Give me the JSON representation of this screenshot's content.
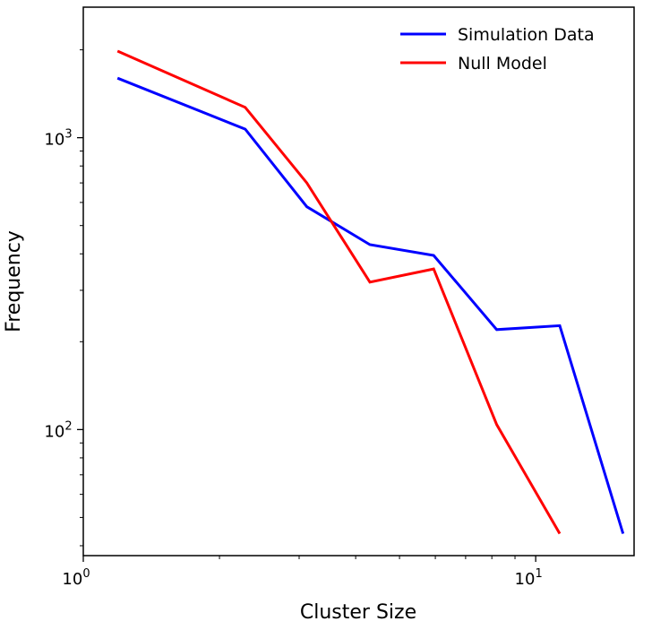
{
  "chart_data": {
    "type": "line",
    "xlabel": "Cluster Size",
    "ylabel": "Frequency",
    "xscale": "log",
    "yscale": "log",
    "xlim": [
      1.0,
      16.5
    ],
    "ylim": [
      37,
      2800
    ],
    "x_major_ticks": [
      {
        "value": 1,
        "base": "10",
        "exp": "0"
      },
      {
        "value": 10,
        "base": "10",
        "exp": "1"
      }
    ],
    "y_major_ticks": [
      {
        "value": 100,
        "base": "10",
        "exp": "2"
      },
      {
        "value": 1000,
        "base": "10",
        "exp": "3"
      }
    ],
    "legend_position": "top-right",
    "grid": false,
    "series": [
      {
        "name": "Simulation Data",
        "color": "#0000ff",
        "points": [
          [
            1.19,
            1600
          ],
          [
            2.28,
            1070
          ],
          [
            3.12,
            580
          ],
          [
            4.3,
            430
          ],
          [
            5.95,
            395
          ],
          [
            8.2,
            220
          ],
          [
            11.3,
            227
          ],
          [
            15.6,
            44
          ]
        ]
      },
      {
        "name": "Null Model",
        "color": "#ff0000",
        "points": [
          [
            1.19,
            1980
          ],
          [
            2.28,
            1270
          ],
          [
            3.12,
            700
          ],
          [
            4.3,
            320
          ],
          [
            5.95,
            355
          ],
          [
            8.2,
            104
          ],
          [
            11.3,
            44
          ]
        ]
      }
    ]
  }
}
